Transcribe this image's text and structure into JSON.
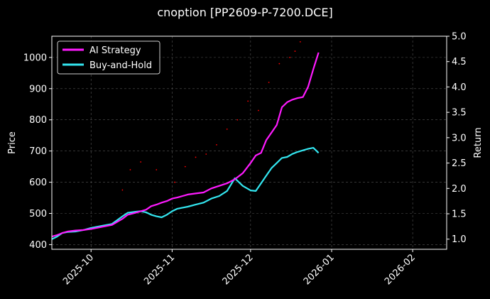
{
  "chart_data": {
    "type": "line",
    "title": "cnoption [PP2609-P-7200.DCE]",
    "xlabel": "",
    "ylabel_left": "Price",
    "ylabel_right": "Return",
    "x_type": "date",
    "xlim": [
      "2025-09-16",
      "2026-02-14"
    ],
    "ylim_left": [
      385,
      1068
    ],
    "ylim_right": [
      0.8,
      5.0
    ],
    "x_ticks": [
      "2025-10",
      "2025-11",
      "2025-12",
      "2026-01",
      "2026-02"
    ],
    "y_ticks_left": [
      400,
      500,
      600,
      700,
      800,
      900,
      1000
    ],
    "y_ticks_right": [
      1.0,
      1.5,
      2.0,
      2.5,
      3.0,
      3.5,
      4.0,
      4.5,
      5.0
    ],
    "grid": true,
    "legend_position": "top-left",
    "colors": {
      "background": "#000000",
      "ai_strategy": "#ff1aff",
      "buy_and_hold": "#33e6f0",
      "price_dots": "#ff0000",
      "grid": "#555555"
    },
    "series": [
      {
        "name": "AI Strategy",
        "axis": "right",
        "x": [
          "2025-09-16",
          "2025-09-18",
          "2025-09-20",
          "2025-09-22",
          "2025-09-25",
          "2025-09-28",
          "2025-10-01",
          "2025-10-05",
          "2025-10-09",
          "2025-10-13",
          "2025-10-15",
          "2025-10-18",
          "2025-10-20",
          "2025-10-22",
          "2025-10-24",
          "2025-10-26",
          "2025-10-28",
          "2025-10-30",
          "2025-11-01",
          "2025-11-03",
          "2025-11-05",
          "2025-11-07",
          "2025-11-10",
          "2025-11-13",
          "2025-11-16",
          "2025-11-19",
          "2025-11-22",
          "2025-11-25",
          "2025-11-28",
          "2025-12-01",
          "2025-12-03",
          "2025-12-05",
          "2025-12-07",
          "2025-12-09",
          "2025-12-11",
          "2025-12-13",
          "2025-12-15",
          "2025-12-17",
          "2025-12-19",
          "2025-12-21",
          "2025-12-23",
          "2025-12-25",
          "2025-12-27"
        ],
        "values": [
          1.05,
          1.08,
          1.12,
          1.15,
          1.17,
          1.18,
          1.2,
          1.24,
          1.28,
          1.4,
          1.48,
          1.52,
          1.55,
          1.58,
          1.65,
          1.68,
          1.72,
          1.75,
          1.8,
          1.82,
          1.85,
          1.88,
          1.9,
          1.92,
          2.0,
          2.05,
          2.1,
          2.18,
          2.3,
          2.5,
          2.65,
          2.7,
          2.95,
          3.1,
          3.25,
          3.6,
          3.7,
          3.75,
          3.78,
          3.8,
          4.0,
          4.35,
          4.68
        ]
      },
      {
        "name": "Buy-and-Hold",
        "axis": "right",
        "x": [
          "2025-09-16",
          "2025-09-18",
          "2025-09-20",
          "2025-09-22",
          "2025-09-25",
          "2025-09-28",
          "2025-10-01",
          "2025-10-05",
          "2025-10-09",
          "2025-10-13",
          "2025-10-15",
          "2025-10-18",
          "2025-10-20",
          "2025-10-22",
          "2025-10-24",
          "2025-10-26",
          "2025-10-28",
          "2025-10-30",
          "2025-11-01",
          "2025-11-03",
          "2025-11-05",
          "2025-11-07",
          "2025-11-10",
          "2025-11-13",
          "2025-11-16",
          "2025-11-19",
          "2025-11-22",
          "2025-11-25",
          "2025-11-28",
          "2025-12-01",
          "2025-12-03",
          "2025-12-05",
          "2025-12-07",
          "2025-12-09",
          "2025-12-11",
          "2025-12-13",
          "2025-12-15",
          "2025-12-17",
          "2025-12-19",
          "2025-12-21",
          "2025-12-23",
          "2025-12-25",
          "2025-12-27"
        ],
        "values": [
          1.0,
          1.05,
          1.12,
          1.14,
          1.15,
          1.18,
          1.22,
          1.26,
          1.3,
          1.45,
          1.52,
          1.54,
          1.55,
          1.53,
          1.48,
          1.45,
          1.43,
          1.48,
          1.55,
          1.6,
          1.62,
          1.64,
          1.68,
          1.72,
          1.8,
          1.85,
          1.95,
          2.2,
          2.05,
          1.96,
          1.95,
          2.1,
          2.25,
          2.4,
          2.5,
          2.6,
          2.62,
          2.68,
          2.72,
          2.75,
          2.78,
          2.8,
          2.7
        ]
      },
      {
        "name": "",
        "axis": "left",
        "marker": "dots",
        "x": [
          "2025-10-13",
          "2025-10-16",
          "2025-10-20",
          "2025-10-26",
          "2025-11-02",
          "2025-11-06",
          "2025-11-10",
          "2025-11-14",
          "2025-11-18",
          "2025-11-22",
          "2025-11-26",
          "2025-11-30",
          "2025-12-04",
          "2025-12-08",
          "2025-12-12",
          "2025-12-16",
          "2025-12-18",
          "2025-12-20"
        ],
        "values": [
          575,
          640,
          665,
          640,
          600,
          650,
          680,
          690,
          720,
          770,
          800,
          860,
          830,
          920,
          980,
          1000,
          1020,
          1050
        ]
      }
    ]
  }
}
